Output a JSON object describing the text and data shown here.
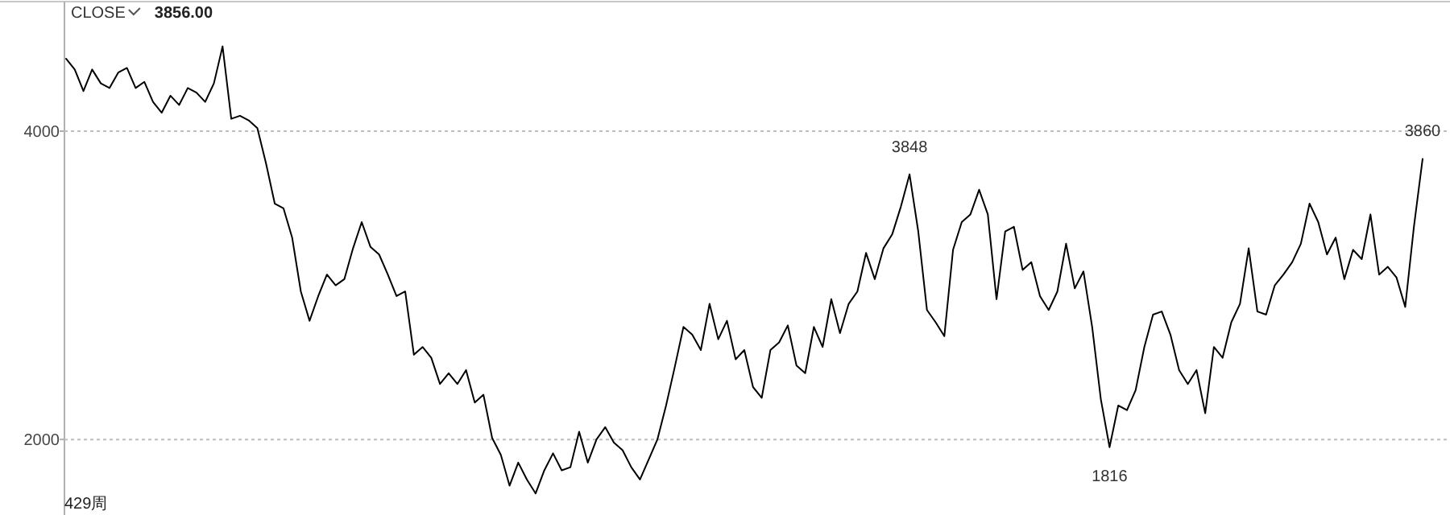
{
  "chart_data": {
    "type": "line",
    "title": "CLOSE",
    "annotations": [
      "3856.00",
      "429周",
      {
        "text": "3848",
        "y": 3720
      },
      {
        "text": "1816",
        "y": 1950
      },
      {
        "text": "3860",
        "y": 3820
      }
    ],
    "categories": [
      null,
      null,
      null,
      null,
      null,
      null,
      null,
      null,
      null,
      null,
      null,
      null,
      null,
      null,
      null,
      null,
      null,
      null,
      null,
      null,
      null,
      null,
      null,
      null,
      null,
      null,
      null,
      null,
      null,
      null,
      null,
      null,
      null,
      null,
      null,
      null,
      null,
      null,
      null,
      null,
      null,
      null,
      null,
      null,
      null,
      null,
      null,
      null,
      null,
      null,
      null,
      null,
      null,
      null,
      null,
      null,
      null,
      null,
      null,
      null,
      null,
      null,
      null,
      null,
      null,
      null,
      null,
      null,
      null,
      null,
      null,
      null,
      null,
      null,
      null,
      null,
      null,
      null,
      null,
      null,
      null,
      null,
      null,
      null,
      null,
      null,
      null,
      null,
      null,
      null,
      null,
      null,
      null,
      null,
      null,
      null,
      null,
      null,
      null,
      null,
      null,
      null,
      null,
      null,
      null,
      null,
      null,
      null,
      null,
      null,
      null,
      null,
      null,
      null,
      null,
      null,
      null,
      null,
      null,
      null,
      null,
      null,
      null,
      null,
      null,
      null,
      null,
      null,
      null,
      null,
      null,
      null,
      null,
      null,
      null,
      null,
      null,
      null,
      null,
      null,
      null,
      null,
      null,
      null,
      null,
      null,
      null,
      null,
      null,
      null,
      null,
      null,
      null,
      null,
      null,
      null,
      null
    ],
    "series": [
      {
        "color": "#000000",
        "values": [
          4470,
          4400,
          4260,
          4400,
          4310,
          4280,
          4380,
          4410,
          4280,
          4320,
          4190,
          4120,
          4230,
          4170,
          4280,
          4250,
          4190,
          4310,
          4550,
          4080,
          4100,
          4070,
          4020,
          3790,
          3530,
          3500,
          3310,
          2960,
          2770,
          2930,
          3070,
          3000,
          3040,
          3240,
          3410,
          3250,
          3200,
          3070,
          2930,
          2960,
          2550,
          2600,
          2530,
          2360,
          2430,
          2360,
          2450,
          2240,
          2290,
          2010,
          1900,
          1700,
          1850,
          1740,
          1650,
          1800,
          1910,
          1800,
          1820,
          2050,
          1850,
          2000,
          2080,
          1980,
          1930,
          1820,
          1740,
          1870,
          2000,
          2220,
          2470,
          2730,
          2680,
          2580,
          2880,
          2650,
          2770,
          2520,
          2580,
          2340,
          2270,
          2580,
          2630,
          2740,
          2480,
          2430,
          2730,
          2600,
          2910,
          2690,
          2880,
          2960,
          3210,
          3040,
          3240,
          3330,
          3510,
          3720,
          3350,
          2840,
          2760,
          2670,
          3230,
          3410,
          3460,
          3620,
          3460,
          2910,
          3350,
          3380,
          3100,
          3150,
          2930,
          2840,
          2960,
          3270,
          2980,
          3090,
          2730,
          2260,
          1950,
          2220,
          2190,
          2320,
          2600,
          2810,
          2830,
          2680,
          2450,
          2360,
          2450,
          2170,
          2600,
          2530,
          2760,
          2880,
          3240,
          2830,
          2810,
          3000,
          3070,
          3150,
          3270,
          3530,
          3410,
          3200,
          3310,
          3040,
          3230,
          3170,
          3460,
          3070,
          3120,
          3050,
          2860,
          3380,
          3820
        ]
      }
    ],
    "ylim": [
      1510,
      4830
    ],
    "yticks": [
      2000,
      4000
    ],
    "grid": "y",
    "tick_labels": "y",
    "marker": "none",
    "line_style": "solid"
  }
}
